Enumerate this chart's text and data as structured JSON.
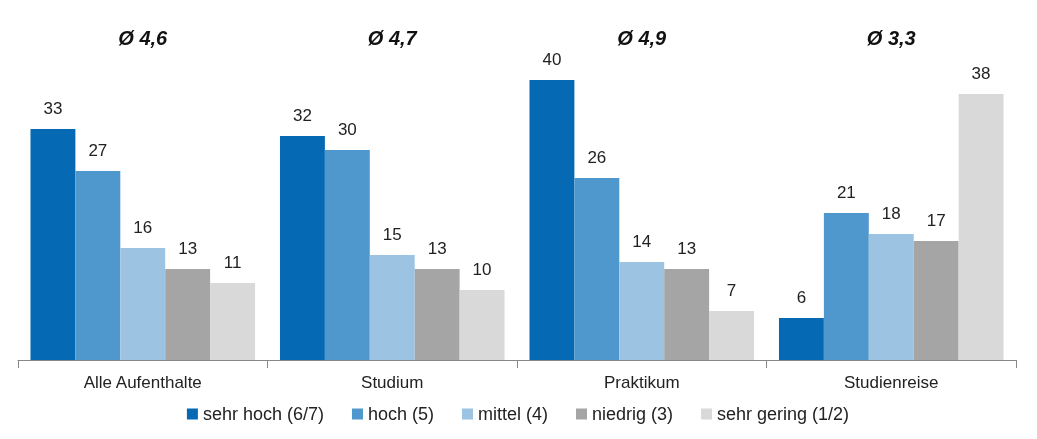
{
  "chart_data": {
    "type": "bar",
    "categories": [
      "Alle Aufenthalte",
      "Studium",
      "Praktikum",
      "Studienreise"
    ],
    "series": [
      {
        "name": "sehr hoch (6/7)",
        "color": "#0569b4",
        "values": [
          33,
          32,
          40,
          6
        ]
      },
      {
        "name": "hoch (5)",
        "color": "#4f98cd",
        "values": [
          27,
          30,
          26,
          21
        ]
      },
      {
        "name": "mittel (4)",
        "color": "#9dc3e3",
        "values": [
          16,
          15,
          14,
          18
        ]
      },
      {
        "name": "niedrig (3)",
        "color": "#a5a5a5",
        "values": [
          13,
          13,
          13,
          17
        ]
      },
      {
        "name": "sehr gering (1/2)",
        "color": "#d9d9d9",
        "values": [
          11,
          10,
          7,
          38
        ]
      }
    ],
    "annotations": [
      "Ø 4,6",
      "Ø 4,7",
      "Ø 4,9",
      "Ø 3,3"
    ],
    "data_labels": true,
    "grid": false,
    "legend": "bottom"
  }
}
